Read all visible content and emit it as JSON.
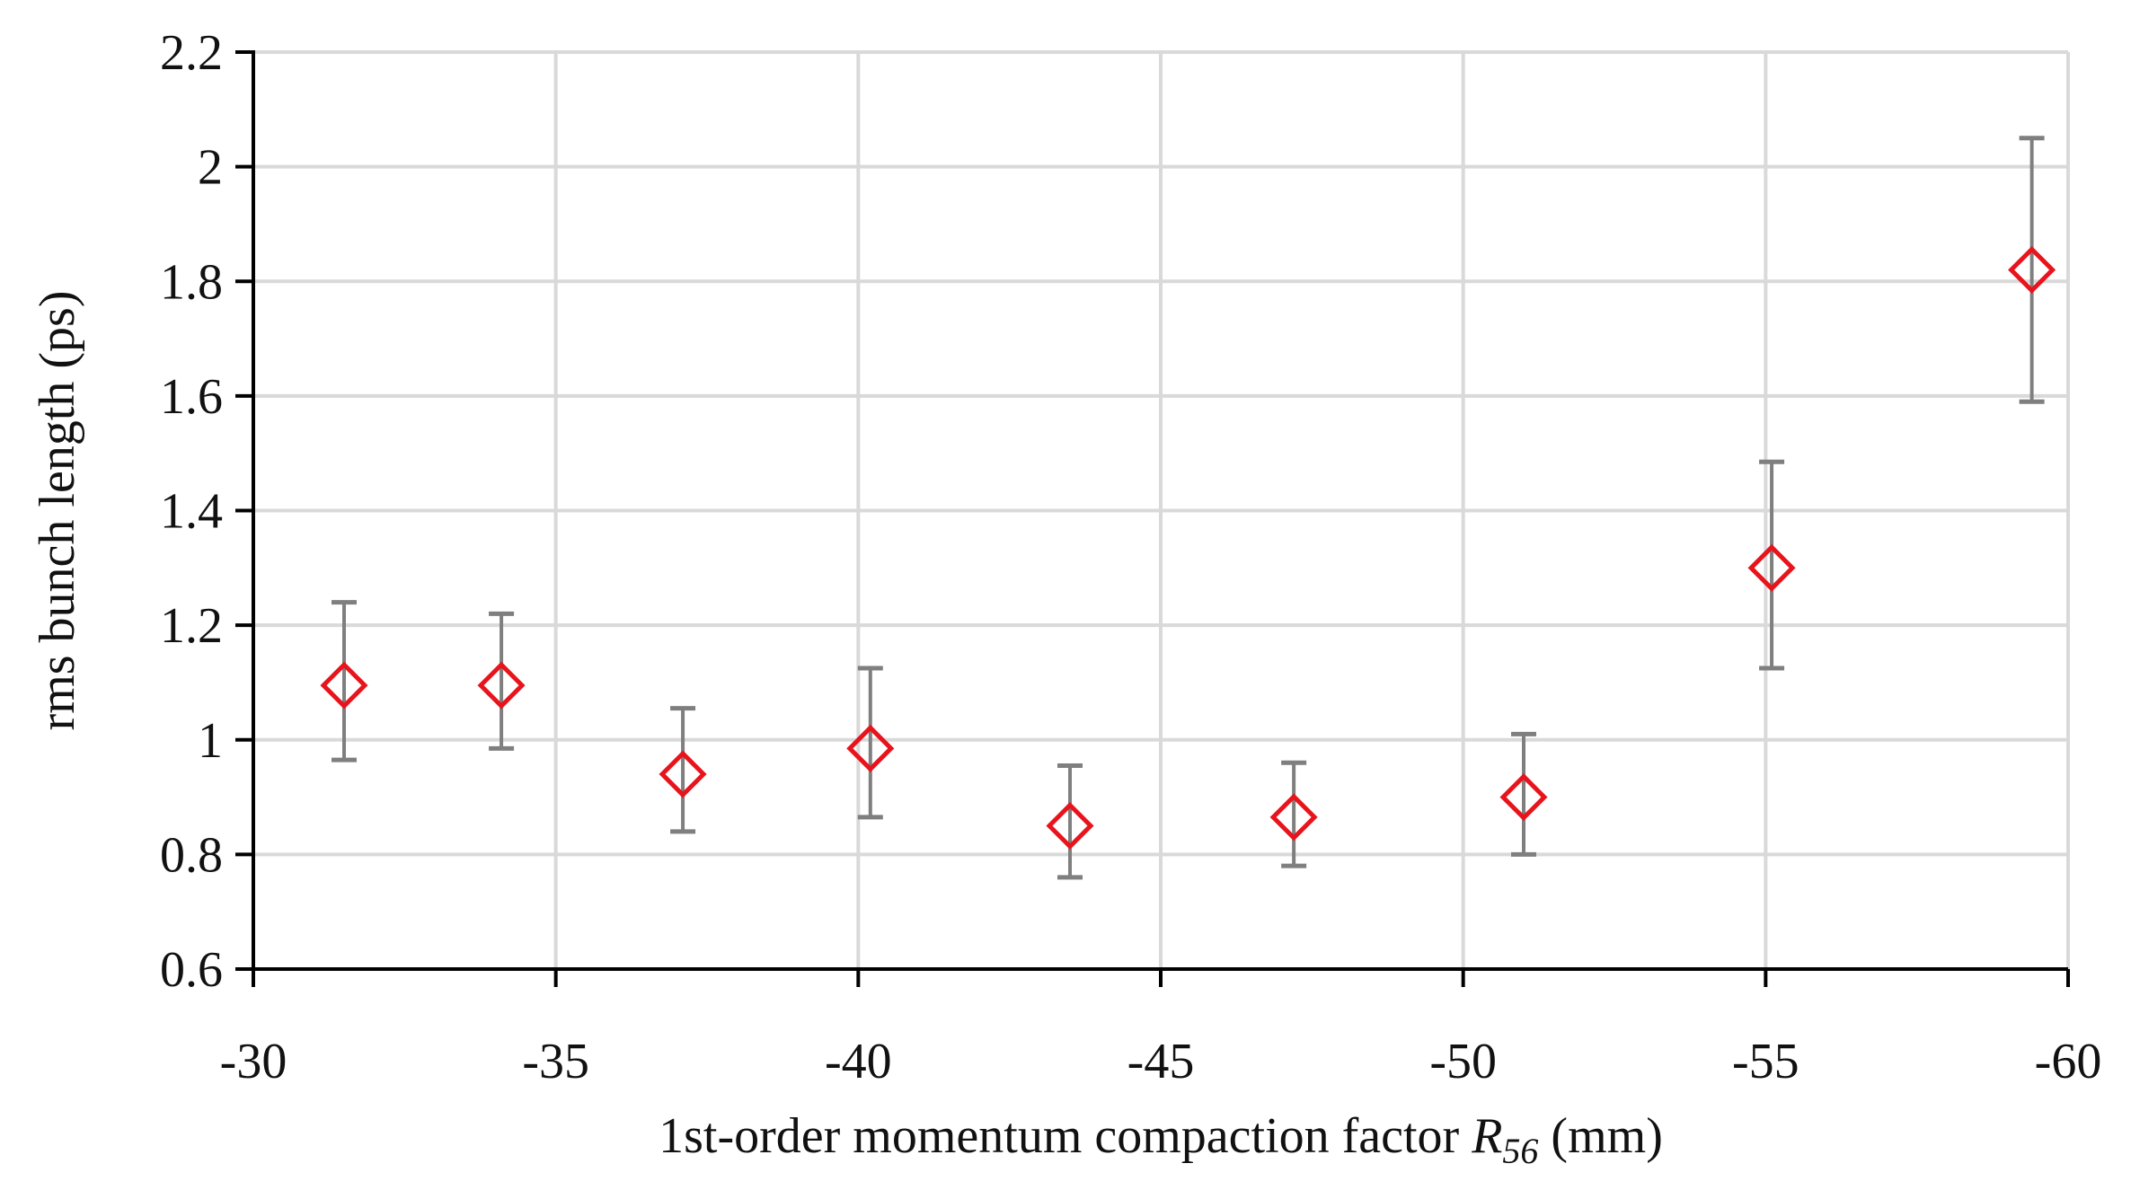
{
  "chart_data": {
    "type": "scatter",
    "title": "",
    "xlabel_main": "1st-order momentum compaction factor ",
    "xlabel_symbol": "R",
    "xlabel_subscript": "56",
    "xlabel_unit": " (mm)",
    "ylabel": "rms bunch length (ps)",
    "xlim": [
      -30,
      -60
    ],
    "ylim": [
      0.6,
      2.2
    ],
    "x_ticks": [
      -30,
      -35,
      -40,
      -45,
      -50,
      -55,
      -60
    ],
    "y_ticks": [
      0.6,
      0.8,
      1,
      1.2,
      1.4,
      1.6,
      1.8,
      2,
      2.2
    ],
    "x_tick_labels": [
      "-30",
      "-35",
      "-40",
      "-45",
      "-50",
      "-55",
      "-60"
    ],
    "y_tick_labels": [
      "0.6",
      "0.8",
      "1",
      "1.2",
      "1.4",
      "1.6",
      "1.8",
      "2",
      "2.2"
    ],
    "grid": true,
    "legend": "none",
    "marker": "open-diamond",
    "marker_color": "#e8141c",
    "errorbar_color": "#7f7f7f",
    "grid_color": "#d9d9d9",
    "series": [
      {
        "points": [
          {
            "x": -31.5,
            "y": 1.095,
            "err_low": 0.965,
            "err_high": 1.24
          },
          {
            "x": -34.1,
            "y": 1.095,
            "err_low": 0.985,
            "err_high": 1.22
          },
          {
            "x": -37.1,
            "y": 0.94,
            "err_low": 0.84,
            "err_high": 1.055
          },
          {
            "x": -40.2,
            "y": 0.985,
            "err_low": 0.865,
            "err_high": 1.125
          },
          {
            "x": -43.5,
            "y": 0.85,
            "err_low": 0.76,
            "err_high": 0.955
          },
          {
            "x": -47.2,
            "y": 0.865,
            "err_low": 0.78,
            "err_high": 0.96
          },
          {
            "x": -51.0,
            "y": 0.9,
            "err_low": 0.8,
            "err_high": 1.01
          },
          {
            "x": -55.1,
            "y": 1.3,
            "err_low": 1.125,
            "err_high": 1.485
          },
          {
            "x": -59.4,
            "y": 1.82,
            "err_low": 1.59,
            "err_high": 2.05
          }
        ]
      }
    ]
  }
}
